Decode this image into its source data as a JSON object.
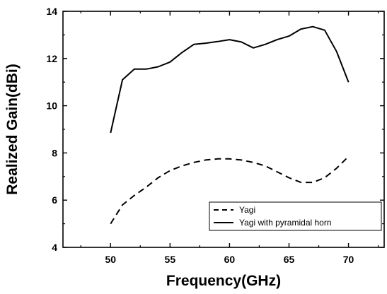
{
  "chart_data": {
    "type": "line",
    "title": "",
    "xlabel": "Frequency(GHz)",
    "ylabel": "Realized Gain(dBi)",
    "xlim": [
      46,
      73
    ],
    "ylim": [
      4,
      14
    ],
    "xticks": [
      50,
      55,
      60,
      65,
      70
    ],
    "yticks": [
      4,
      6,
      8,
      10,
      12,
      14
    ],
    "xtick_labels": [
      "50",
      "55",
      "60",
      "65",
      "70"
    ],
    "ytick_labels": [
      "4",
      "6",
      "8",
      "10",
      "12",
      "14"
    ],
    "grid": false,
    "legend_position": "bottom-right",
    "series": [
      {
        "name": "Yagi",
        "style": "dashed",
        "color": "#000000",
        "x": [
          50,
          51,
          52,
          53,
          54,
          55,
          56,
          57,
          58,
          59,
          60,
          61,
          62,
          63,
          64,
          65,
          66,
          67,
          68,
          69,
          70
        ],
        "y": [
          5.0,
          5.8,
          6.2,
          6.55,
          6.95,
          7.25,
          7.45,
          7.6,
          7.7,
          7.75,
          7.75,
          7.7,
          7.6,
          7.45,
          7.2,
          6.95,
          6.75,
          6.75,
          6.95,
          7.35,
          7.85
        ]
      },
      {
        "name": "Yagi with pyramidal horn",
        "style": "solid",
        "color": "#000000",
        "x": [
          50,
          51,
          52,
          53,
          54,
          55,
          56,
          57,
          58,
          59,
          60,
          61,
          62,
          63,
          64,
          65,
          66,
          67,
          68,
          69,
          70
        ],
        "y": [
          8.85,
          11.1,
          11.55,
          11.55,
          11.65,
          11.85,
          12.25,
          12.6,
          12.65,
          12.72,
          12.8,
          12.7,
          12.45,
          12.6,
          12.8,
          12.95,
          13.25,
          13.35,
          13.2,
          12.3,
          11.0
        ]
      }
    ]
  }
}
